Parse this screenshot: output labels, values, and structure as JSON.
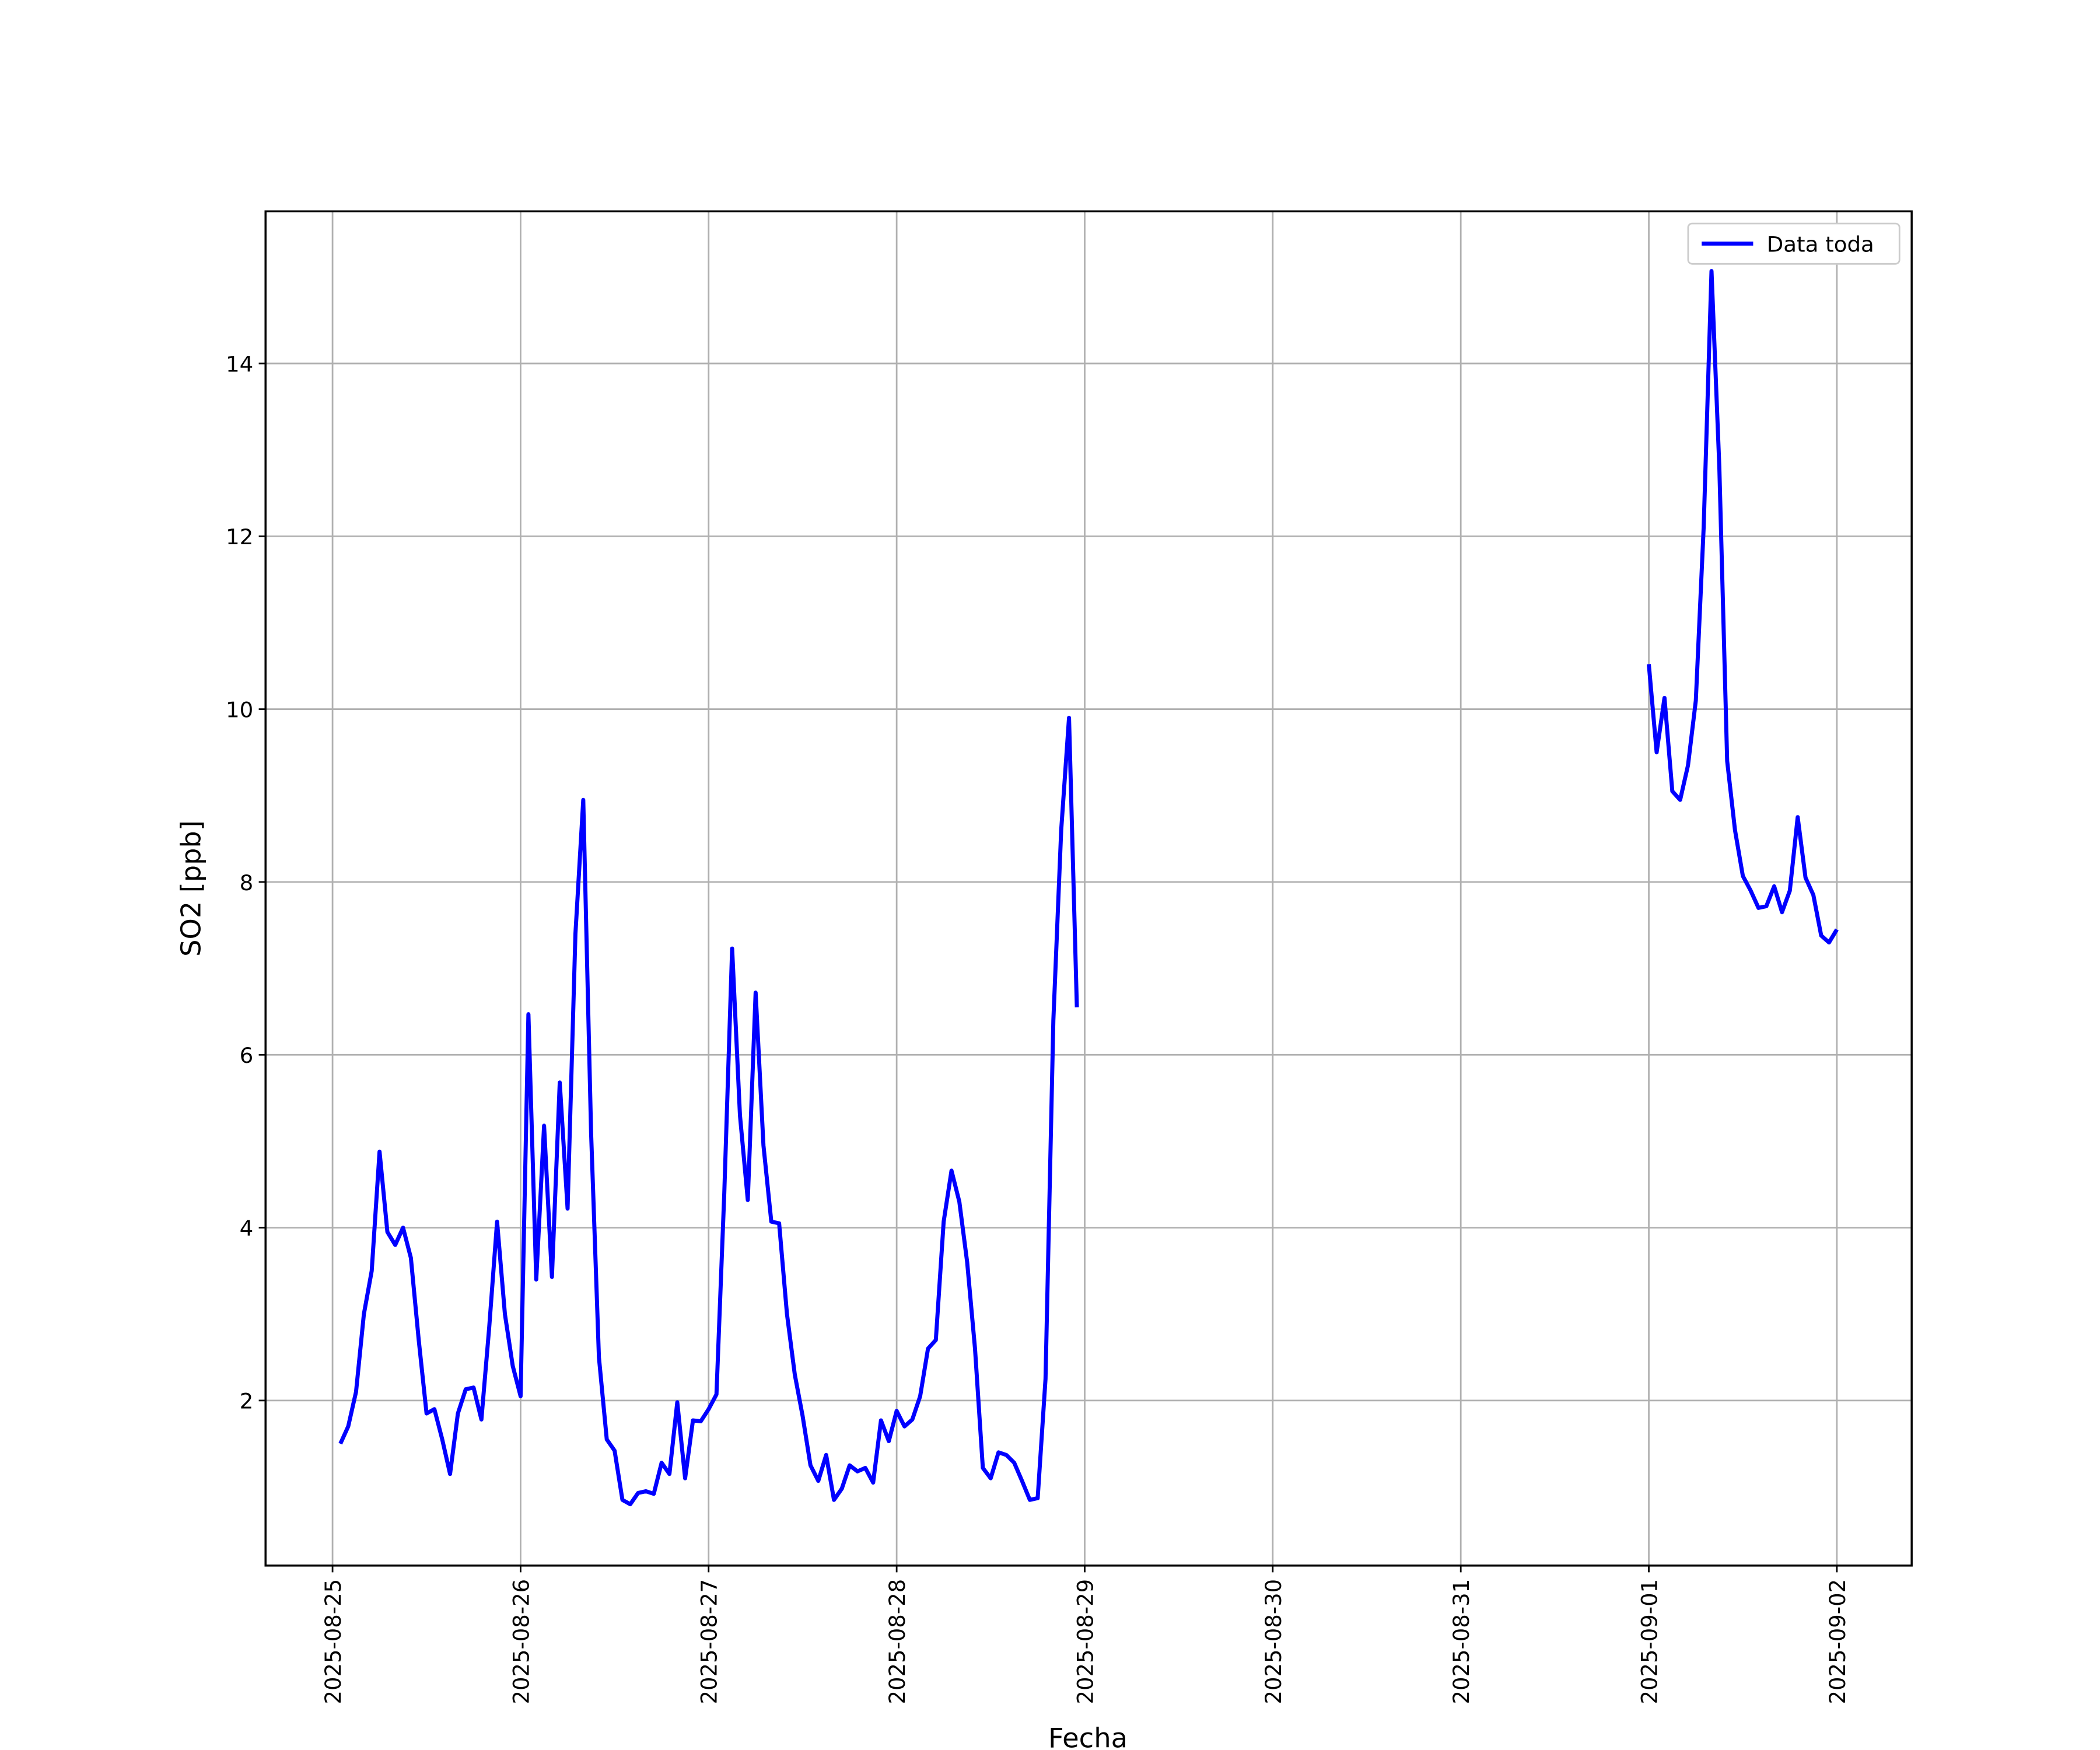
{
  "chart_data": {
    "type": "line",
    "xlabel": "Fecha",
    "ylabel": "SO2 [ppb]",
    "x": [
      "2025-08-25 01:00",
      "2025-08-25 02:00",
      "2025-08-25 03:00",
      "2025-08-25 04:00",
      "2025-08-25 05:00",
      "2025-08-25 06:00",
      "2025-08-25 07:00",
      "2025-08-25 08:00",
      "2025-08-25 09:00",
      "2025-08-25 10:00",
      "2025-08-25 11:00",
      "2025-08-25 12:00",
      "2025-08-25 13:00",
      "2025-08-25 14:00",
      "2025-08-25 15:00",
      "2025-08-25 16:00",
      "2025-08-25 17:00",
      "2025-08-25 18:00",
      "2025-08-25 19:00",
      "2025-08-25 20:00",
      "2025-08-25 21:00",
      "2025-08-25 22:00",
      "2025-08-25 23:00",
      "2025-08-26 00:00",
      "2025-08-26 01:00",
      "2025-08-26 02:00",
      "2025-08-26 03:00",
      "2025-08-26 04:00",
      "2025-08-26 05:00",
      "2025-08-26 06:00",
      "2025-08-26 07:00",
      "2025-08-26 08:00",
      "2025-08-26 09:00",
      "2025-08-26 10:00",
      "2025-08-26 11:00",
      "2025-08-26 12:00",
      "2025-08-26 13:00",
      "2025-08-26 14:00",
      "2025-08-26 15:00",
      "2025-08-26 16:00",
      "2025-08-26 17:00",
      "2025-08-26 18:00",
      "2025-08-26 19:00",
      "2025-08-26 20:00",
      "2025-08-26 21:00",
      "2025-08-26 22:00",
      "2025-08-26 23:00",
      "2025-08-27 00:00",
      "2025-08-27 01:00",
      "2025-08-27 02:00",
      "2025-08-27 03:00",
      "2025-08-27 04:00",
      "2025-08-27 05:00",
      "2025-08-27 06:00",
      "2025-08-27 07:00",
      "2025-08-27 08:00",
      "2025-08-27 09:00",
      "2025-08-27 10:00",
      "2025-08-27 11:00",
      "2025-08-27 12:00",
      "2025-08-27 13:00",
      "2025-08-27 14:00",
      "2025-08-27 15:00",
      "2025-08-27 16:00",
      "2025-08-27 17:00",
      "2025-08-27 18:00",
      "2025-08-27 19:00",
      "2025-08-27 20:00",
      "2025-08-27 21:00",
      "2025-08-27 22:00",
      "2025-08-27 23:00",
      "2025-08-28 00:00",
      "2025-08-28 01:00",
      "2025-08-28 02:00",
      "2025-08-28 03:00",
      "2025-08-28 04:00",
      "2025-08-28 05:00",
      "2025-08-28 06:00",
      "2025-08-28 07:00",
      "2025-08-28 08:00",
      "2025-08-28 09:00",
      "2025-08-28 10:00",
      "2025-08-28 11:00",
      "2025-08-28 12:00",
      "2025-08-28 13:00",
      "2025-08-28 14:00",
      "2025-08-28 15:00",
      "2025-08-28 16:00",
      "2025-08-28 17:00",
      "2025-08-28 18:00",
      "2025-08-28 19:00",
      "2025-08-28 20:00",
      "2025-08-28 21:00",
      "2025-08-28 22:00",
      "2025-08-28 23:00",
      "2025-08-29 00:00",
      "2025-09-01 00:00",
      "2025-09-01 01:00",
      "2025-09-01 02:00",
      "2025-09-01 03:00",
      "2025-09-01 04:00",
      "2025-09-01 05:00",
      "2025-09-01 06:00",
      "2025-09-01 07:00",
      "2025-09-01 08:00",
      "2025-09-01 09:00",
      "2025-09-01 10:00",
      "2025-09-01 11:00",
      "2025-09-01 12:00",
      "2025-09-01 13:00",
      "2025-09-01 14:00",
      "2025-09-01 15:00",
      "2025-09-01 16:00",
      "2025-09-01 17:00",
      "2025-09-01 18:00",
      "2025-09-01 19:00",
      "2025-09-01 20:00",
      "2025-09-01 21:00",
      "2025-09-01 22:00",
      "2025-09-01 23:00",
      "2025-09-02 00:00"
    ],
    "series": [
      {
        "name": "Data toda",
        "color": "#0000ff",
        "values": [
          1.5,
          1.7,
          2.1,
          3.0,
          3.5,
          4.88,
          3.95,
          3.8,
          4.0,
          3.65,
          2.7,
          1.85,
          1.9,
          1.55,
          1.15,
          1.85,
          2.13,
          2.15,
          1.78,
          2.85,
          4.07,
          3.0,
          2.4,
          2.05,
          6.47,
          3.4,
          5.18,
          3.43,
          5.68,
          4.22,
          7.4,
          8.95,
          5.1,
          2.5,
          1.55,
          1.42,
          0.85,
          0.8,
          0.93,
          0.95,
          0.92,
          1.28,
          1.15,
          1.98,
          1.1,
          1.77,
          1.76,
          1.9,
          2.07,
          4.4,
          7.23,
          5.3,
          4.32,
          6.72,
          4.95,
          4.07,
          4.05,
          3.0,
          2.3,
          1.82,
          1.25,
          1.07,
          1.37,
          0.85,
          0.98,
          1.25,
          1.18,
          1.22,
          1.05,
          1.77,
          1.53,
          1.88,
          1.7,
          1.78,
          2.05,
          2.6,
          2.7,
          4.07,
          4.66,
          4.3,
          3.6,
          2.6,
          1.22,
          1.1,
          1.4,
          1.37,
          1.28,
          1.07,
          0.85,
          0.87,
          2.25,
          6.4,
          8.6,
          9.9,
          6.55,
          null,
          10.52,
          9.5,
          10.13,
          9.05,
          8.95,
          9.35,
          10.1,
          12.1,
          15.07,
          12.8,
          9.4,
          8.6,
          8.07,
          7.9,
          7.7,
          7.72,
          7.95,
          7.65,
          7.9,
          8.75,
          8.05,
          7.85,
          7.38,
          7.3,
          7.45
        ]
      }
    ],
    "xlim": [
      "2025-08-24 15:27",
      "2025-09-02 09:33"
    ],
    "xticks": [
      "2025-08-25",
      "2025-08-26",
      "2025-08-27",
      "2025-08-28",
      "2025-08-29",
      "2025-08-30",
      "2025-08-31",
      "2025-09-01",
      "2025-09-02"
    ],
    "ylim": [
      0.09,
      15.76
    ],
    "yticks": [
      2,
      4,
      6,
      8,
      10,
      12,
      14
    ],
    "grid": true,
    "legend": "upper right"
  }
}
